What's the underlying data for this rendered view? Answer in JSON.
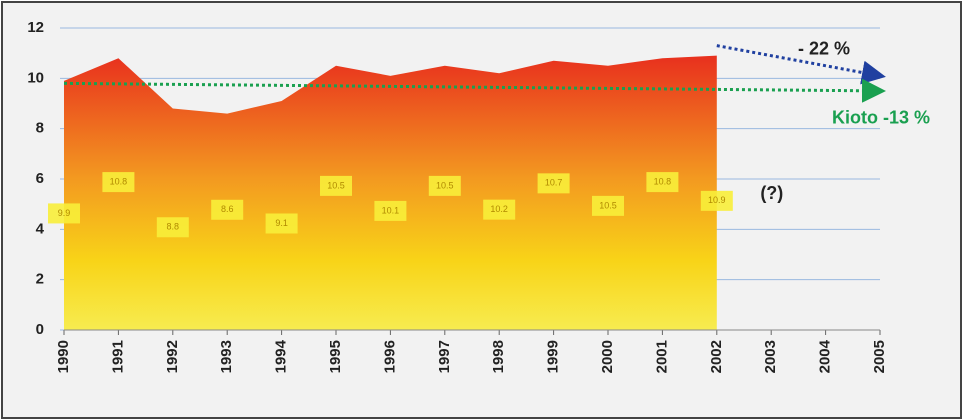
{
  "chart_data": {
    "type": "area",
    "x": [
      1990,
      1991,
      1992,
      1993,
      1994,
      1995,
      1996,
      1997,
      1998,
      1999,
      2000,
      2001,
      2002
    ],
    "series": [
      {
        "values": [
          9.9,
          10.8,
          8.8,
          8.6,
          9.1,
          10.5,
          10.1,
          10.5,
          10.2,
          10.7,
          10.5,
          10.8,
          10.9
        ]
      }
    ],
    "xlim": [
      1990,
      2005
    ],
    "xticks": [
      1990,
      1991,
      1992,
      1993,
      1994,
      1995,
      1996,
      1997,
      1998,
      1999,
      2000,
      2001,
      2002,
      2003,
      2004,
      2005
    ],
    "ylim": [
      0,
      12
    ],
    "yticks": [
      0,
      2,
      4,
      6,
      8,
      10,
      12
    ],
    "grid": true,
    "annotations": [
      {
        "text": "- 22 %",
        "color": "#2040a0",
        "x": [
          2002,
          2005
        ],
        "y": [
          11.3,
          10.1
        ]
      },
      {
        "text": "Kioto  -13 %",
        "color": "#1aa050",
        "x": [
          1990,
          2005
        ],
        "y": [
          9.8,
          9.5
        ]
      },
      {
        "text": "(?)",
        "x": [
          2002.8
        ],
        "y": [
          5.4
        ]
      }
    ]
  }
}
